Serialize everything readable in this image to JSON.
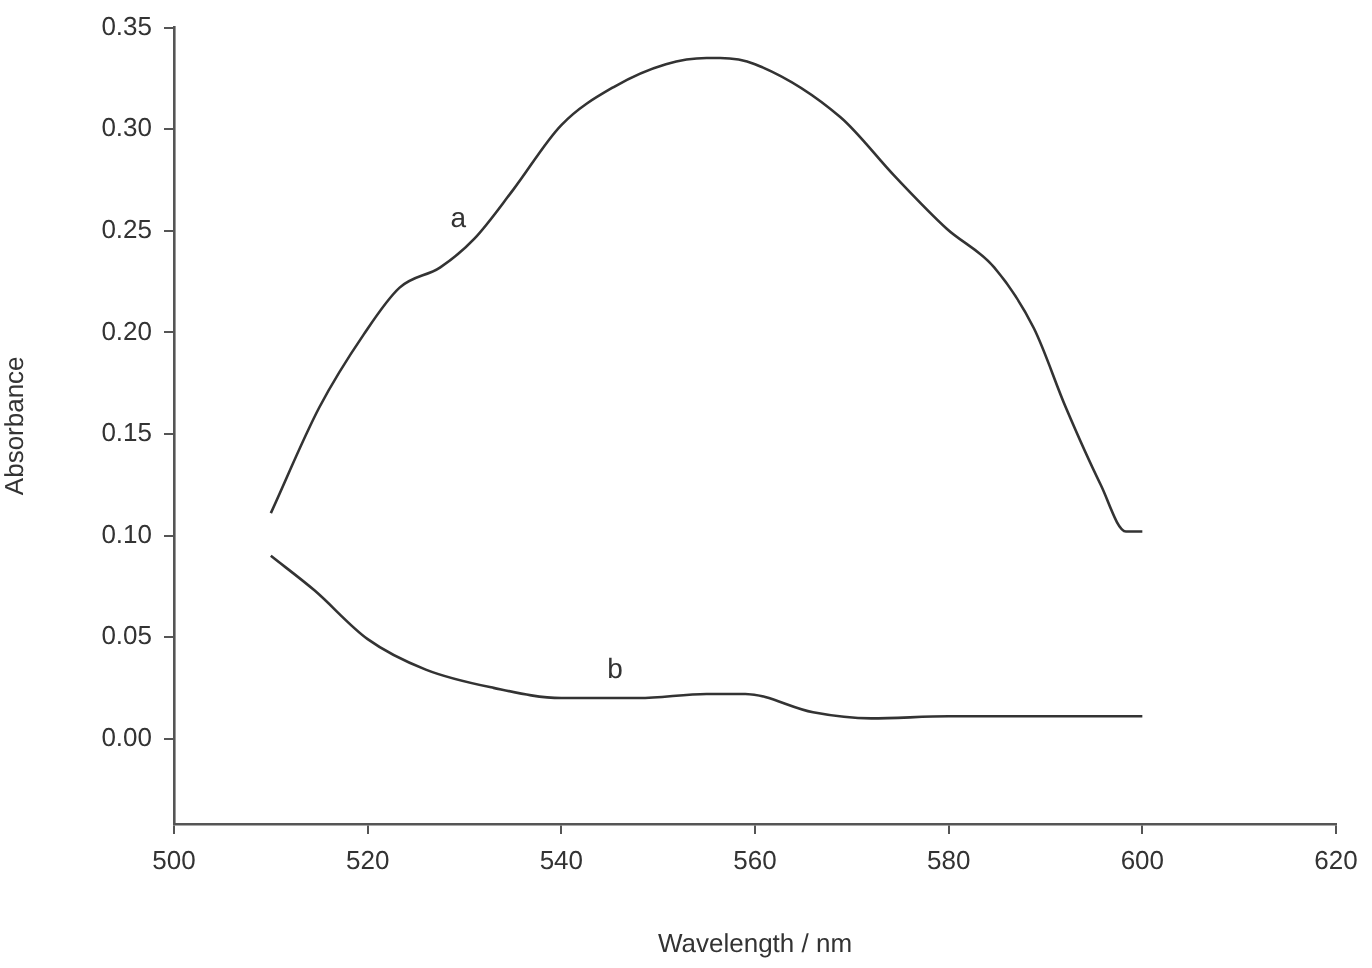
{
  "chart_data": {
    "type": "line",
    "xlabel": "Wavelength / nm",
    "ylabel": "Absorbance",
    "xlim": [
      500,
      620
    ],
    "xticks": [
      500,
      520,
      540,
      560,
      580,
      600,
      620
    ],
    "ylim": [
      -0.042,
      0.35
    ],
    "yticks": [
      {
        "value": 0,
        "label": "0.00"
      },
      {
        "value": 0.05,
        "label": "0.05"
      },
      {
        "value": 0.1,
        "label": "0.10"
      },
      {
        "value": 0.15,
        "label": "0.15"
      },
      {
        "value": 0.2,
        "label": "0.20"
      },
      {
        "value": 0.25,
        "label": "0.25"
      },
      {
        "value": 0.3,
        "label": "0.30"
      },
      {
        "value": 0.35,
        "label": "0.35"
      }
    ],
    "grid": false,
    "legend": false,
    "marker": "none",
    "line_style": "solid",
    "series": [
      {
        "name": "a",
        "color": "#333333",
        "x": [
          510,
          515,
          519.6,
          523.3,
          527.5,
          531,
          535,
          540,
          545.5,
          550.8,
          555,
          556.4,
          560,
          568.8,
          574.4,
          579.8,
          584.7,
          588.8,
          592.1,
          595.7,
          598.3,
          600
        ],
        "values": [
          0.111,
          0.163,
          0.199,
          0.222,
          0.232,
          0.246,
          0.27,
          0.302,
          0.321,
          0.332,
          0.335,
          0.335,
          0.332,
          0.306,
          0.277,
          0.251,
          0.232,
          0.202,
          0.163,
          0.125,
          0.102,
          0.102
        ]
      },
      {
        "name": "b",
        "color": "#333333",
        "x": [
          510,
          514.5,
          520,
          526,
          533,
          540,
          548,
          555,
          559,
          566,
          572,
          580,
          600
        ],
        "values": [
          0.09,
          0.073,
          0.049,
          0.034,
          0.025,
          0.02,
          0.02,
          0.022,
          0.022,
          0.013,
          0.01,
          0.011,
          0.011
        ]
      }
    ]
  }
}
